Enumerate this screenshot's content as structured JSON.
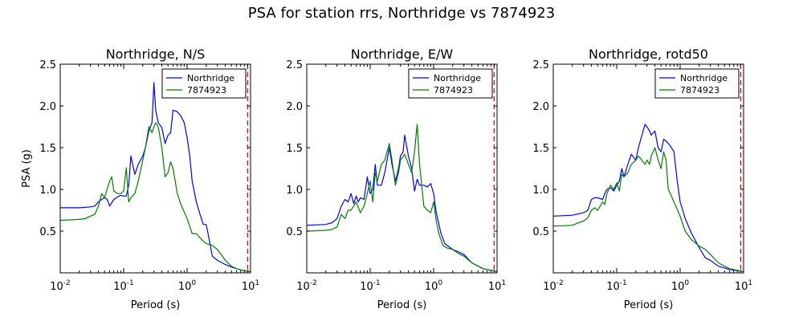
{
  "suptitle": "PSA for station rrs, Northridge vs 7874923",
  "colors": {
    "Northridge": "#0000ff",
    "7874923": "#008000",
    "limit": "#ff0000"
  },
  "chart_data": [
    {
      "type": "line",
      "title": "Northridge, N/S",
      "xlabel": "Period (s)",
      "ylabel": "PSA (g)",
      "xscale": "log",
      "xlim": [
        0.01,
        10
      ],
      "ylim": [
        0,
        2.5
      ],
      "xticks": [
        "10^-2",
        "10^-1",
        "10^0",
        "10^1"
      ],
      "yticks": [
        "0.5",
        "1.0",
        "1.5",
        "2.0",
        "2.5"
      ],
      "legend": "top-right",
      "vline_x": 9.0,
      "series": [
        {
          "name": "Northridge",
          "x": [
            0.01,
            0.02,
            0.03,
            0.035,
            0.04,
            0.045,
            0.05,
            0.055,
            0.06,
            0.07,
            0.08,
            0.09,
            0.1,
            0.11,
            0.12,
            0.13,
            0.15,
            0.17,
            0.2,
            0.22,
            0.25,
            0.28,
            0.3,
            0.32,
            0.35,
            0.4,
            0.45,
            0.5,
            0.55,
            0.6,
            0.7,
            0.8,
            0.9,
            1.0,
            1.1,
            1.2,
            1.4,
            1.6,
            1.8,
            2.0,
            2.2,
            2.5,
            3.0,
            4.0,
            5.0,
            6.0,
            7.5,
            10.0
          ],
          "values": [
            0.78,
            0.78,
            0.79,
            0.8,
            0.85,
            0.88,
            0.9,
            0.88,
            0.8,
            0.88,
            0.91,
            0.93,
            0.92,
            0.92,
            1.05,
            1.4,
            1.18,
            1.3,
            1.4,
            1.5,
            1.7,
            1.8,
            2.28,
            1.95,
            1.8,
            1.74,
            1.55,
            1.65,
            1.68,
            1.95,
            1.93,
            1.88,
            1.8,
            1.62,
            1.4,
            1.1,
            0.85,
            0.7,
            0.58,
            0.58,
            0.42,
            0.2,
            0.15,
            0.1,
            0.07,
            0.05,
            0.03,
            0.015
          ]
        },
        {
          "name": "7874923",
          "x": [
            0.01,
            0.02,
            0.025,
            0.03,
            0.035,
            0.04,
            0.045,
            0.05,
            0.06,
            0.065,
            0.07,
            0.08,
            0.09,
            0.1,
            0.11,
            0.12,
            0.13,
            0.15,
            0.17,
            0.2,
            0.22,
            0.25,
            0.28,
            0.3,
            0.32,
            0.35,
            0.4,
            0.45,
            0.5,
            0.55,
            0.6,
            0.7,
            0.8,
            1.0,
            1.2,
            1.4,
            1.6,
            1.8,
            2.0,
            2.5,
            3.0,
            4.0,
            5.0,
            6.0,
            7.5,
            10.0
          ],
          "values": [
            0.63,
            0.64,
            0.65,
            0.68,
            0.7,
            0.8,
            0.95,
            0.9,
            1.1,
            1.15,
            0.98,
            0.95,
            0.95,
            0.98,
            1.26,
            0.85,
            0.9,
            0.95,
            1.1,
            1.35,
            1.5,
            1.75,
            1.68,
            1.75,
            1.8,
            1.75,
            1.5,
            1.15,
            1.2,
            1.33,
            1.25,
            0.95,
            0.82,
            0.65,
            0.47,
            0.47,
            0.42,
            0.38,
            0.35,
            0.33,
            0.28,
            0.15,
            0.08,
            0.05,
            0.03,
            0.015
          ]
        }
      ]
    },
    {
      "type": "line",
      "title": "Northridge, E/W",
      "xlabel": "Period (s)",
      "ylabel": "",
      "xscale": "log",
      "xlim": [
        0.01,
        10
      ],
      "ylim": [
        0,
        2.5
      ],
      "xticks": [
        "10^-2",
        "10^-1",
        "10^0",
        "10^1"
      ],
      "yticks": [
        "0.5",
        "1.0",
        "1.5",
        "2.0",
        "2.5"
      ],
      "legend": "top-right",
      "vline_x": 9.0,
      "series": [
        {
          "name": "Northridge",
          "x": [
            0.01,
            0.02,
            0.025,
            0.03,
            0.035,
            0.04,
            0.045,
            0.05,
            0.055,
            0.06,
            0.065,
            0.07,
            0.08,
            0.09,
            0.1,
            0.11,
            0.12,
            0.13,
            0.15,
            0.17,
            0.2,
            0.22,
            0.25,
            0.28,
            0.3,
            0.33,
            0.35,
            0.4,
            0.45,
            0.5,
            0.55,
            0.6,
            0.7,
            0.8,
            0.9,
            1.0,
            1.1,
            1.3,
            1.5,
            2.0,
            2.5,
            3.0,
            4.0,
            6.0,
            10.0
          ],
          "values": [
            0.57,
            0.58,
            0.6,
            0.65,
            0.8,
            0.88,
            0.85,
            0.95,
            0.83,
            0.92,
            0.85,
            0.9,
            0.88,
            1.15,
            0.95,
            1.0,
            1.3,
            1.05,
            1.05,
            1.2,
            1.5,
            1.3,
            1.1,
            1.25,
            1.4,
            1.45,
            1.65,
            1.4,
            1.25,
            0.98,
            1.12,
            1.05,
            1.05,
            1.03,
            1.07,
            0.95,
            0.72,
            0.48,
            0.35,
            0.28,
            0.25,
            0.22,
            0.12,
            0.05,
            0.015
          ]
        },
        {
          "name": "7874923",
          "x": [
            0.01,
            0.02,
            0.025,
            0.03,
            0.035,
            0.04,
            0.045,
            0.05,
            0.06,
            0.07,
            0.08,
            0.09,
            0.1,
            0.11,
            0.12,
            0.13,
            0.15,
            0.17,
            0.2,
            0.22,
            0.25,
            0.28,
            0.3,
            0.35,
            0.4,
            0.45,
            0.5,
            0.55,
            0.6,
            0.65,
            0.7,
            0.8,
            0.9,
            1.0,
            1.1,
            1.2,
            1.4,
            1.6,
            2.0,
            2.5,
            3.0,
            4.0,
            6.0,
            10.0
          ],
          "values": [
            0.5,
            0.51,
            0.52,
            0.55,
            0.7,
            0.65,
            0.75,
            0.75,
            0.85,
            0.72,
            0.8,
            0.95,
            1.1,
            0.85,
            1.2,
            1.1,
            1.3,
            1.35,
            1.55,
            1.35,
            1.05,
            1.2,
            1.35,
            1.42,
            1.3,
            1.2,
            1.45,
            1.78,
            1.3,
            1.05,
            0.8,
            0.75,
            0.72,
            0.85,
            0.62,
            0.48,
            0.33,
            0.3,
            0.28,
            0.23,
            0.2,
            0.12,
            0.05,
            0.015
          ]
        }
      ]
    },
    {
      "type": "line",
      "title": "Northridge, rotd50",
      "xlabel": "Period (s)",
      "ylabel": "",
      "xscale": "log",
      "xlim": [
        0.01,
        10
      ],
      "ylim": [
        0,
        2.5
      ],
      "xticks": [
        "10^-2",
        "10^-1",
        "10^0",
        "10^1"
      ],
      "yticks": [
        "0.5",
        "1.0",
        "1.5",
        "2.0",
        "2.5"
      ],
      "legend": "top-right",
      "vline_x": 9.0,
      "series": [
        {
          "name": "Northridge",
          "x": [
            0.01,
            0.02,
            0.03,
            0.035,
            0.04,
            0.045,
            0.05,
            0.06,
            0.065,
            0.07,
            0.08,
            0.09,
            0.1,
            0.11,
            0.12,
            0.13,
            0.15,
            0.17,
            0.2,
            0.22,
            0.25,
            0.28,
            0.3,
            0.33,
            0.35,
            0.4,
            0.45,
            0.5,
            0.55,
            0.6,
            0.7,
            0.8,
            0.9,
            1.0,
            1.1,
            1.2,
            1.5,
            2.0,
            2.5,
            3.0,
            4.0,
            6.0,
            10.0
          ],
          "values": [
            0.68,
            0.69,
            0.72,
            0.75,
            0.88,
            0.9,
            0.9,
            0.88,
            0.95,
            1.0,
            1.02,
            0.98,
            1.05,
            1.1,
            1.25,
            1.15,
            1.3,
            1.42,
            1.35,
            1.5,
            1.65,
            1.78,
            1.75,
            1.7,
            1.65,
            1.7,
            1.5,
            1.45,
            1.6,
            1.58,
            1.52,
            1.45,
            1.1,
            0.85,
            0.75,
            0.65,
            0.48,
            0.3,
            0.18,
            0.15,
            0.08,
            0.04,
            0.015
          ]
        },
        {
          "name": "7874923",
          "x": [
            0.01,
            0.02,
            0.025,
            0.03,
            0.035,
            0.04,
            0.045,
            0.05,
            0.055,
            0.06,
            0.065,
            0.07,
            0.08,
            0.09,
            0.1,
            0.11,
            0.12,
            0.13,
            0.15,
            0.17,
            0.2,
            0.22,
            0.25,
            0.28,
            0.3,
            0.33,
            0.35,
            0.4,
            0.45,
            0.5,
            0.55,
            0.6,
            0.65,
            0.7,
            0.8,
            1.0,
            1.2,
            1.5,
            2.0,
            2.5,
            3.0,
            4.0,
            6.0,
            10.0
          ],
          "values": [
            0.56,
            0.57,
            0.6,
            0.62,
            0.66,
            0.75,
            0.78,
            0.75,
            0.8,
            0.85,
            0.82,
            0.95,
            1.05,
            1.0,
            1.08,
            0.98,
            1.18,
            1.15,
            1.2,
            1.3,
            1.35,
            1.4,
            1.35,
            1.3,
            1.35,
            1.3,
            1.4,
            1.5,
            1.35,
            1.25,
            1.45,
            1.35,
            1.0,
            0.95,
            0.85,
            0.68,
            0.5,
            0.4,
            0.32,
            0.28,
            0.22,
            0.12,
            0.05,
            0.015
          ]
        }
      ]
    }
  ]
}
